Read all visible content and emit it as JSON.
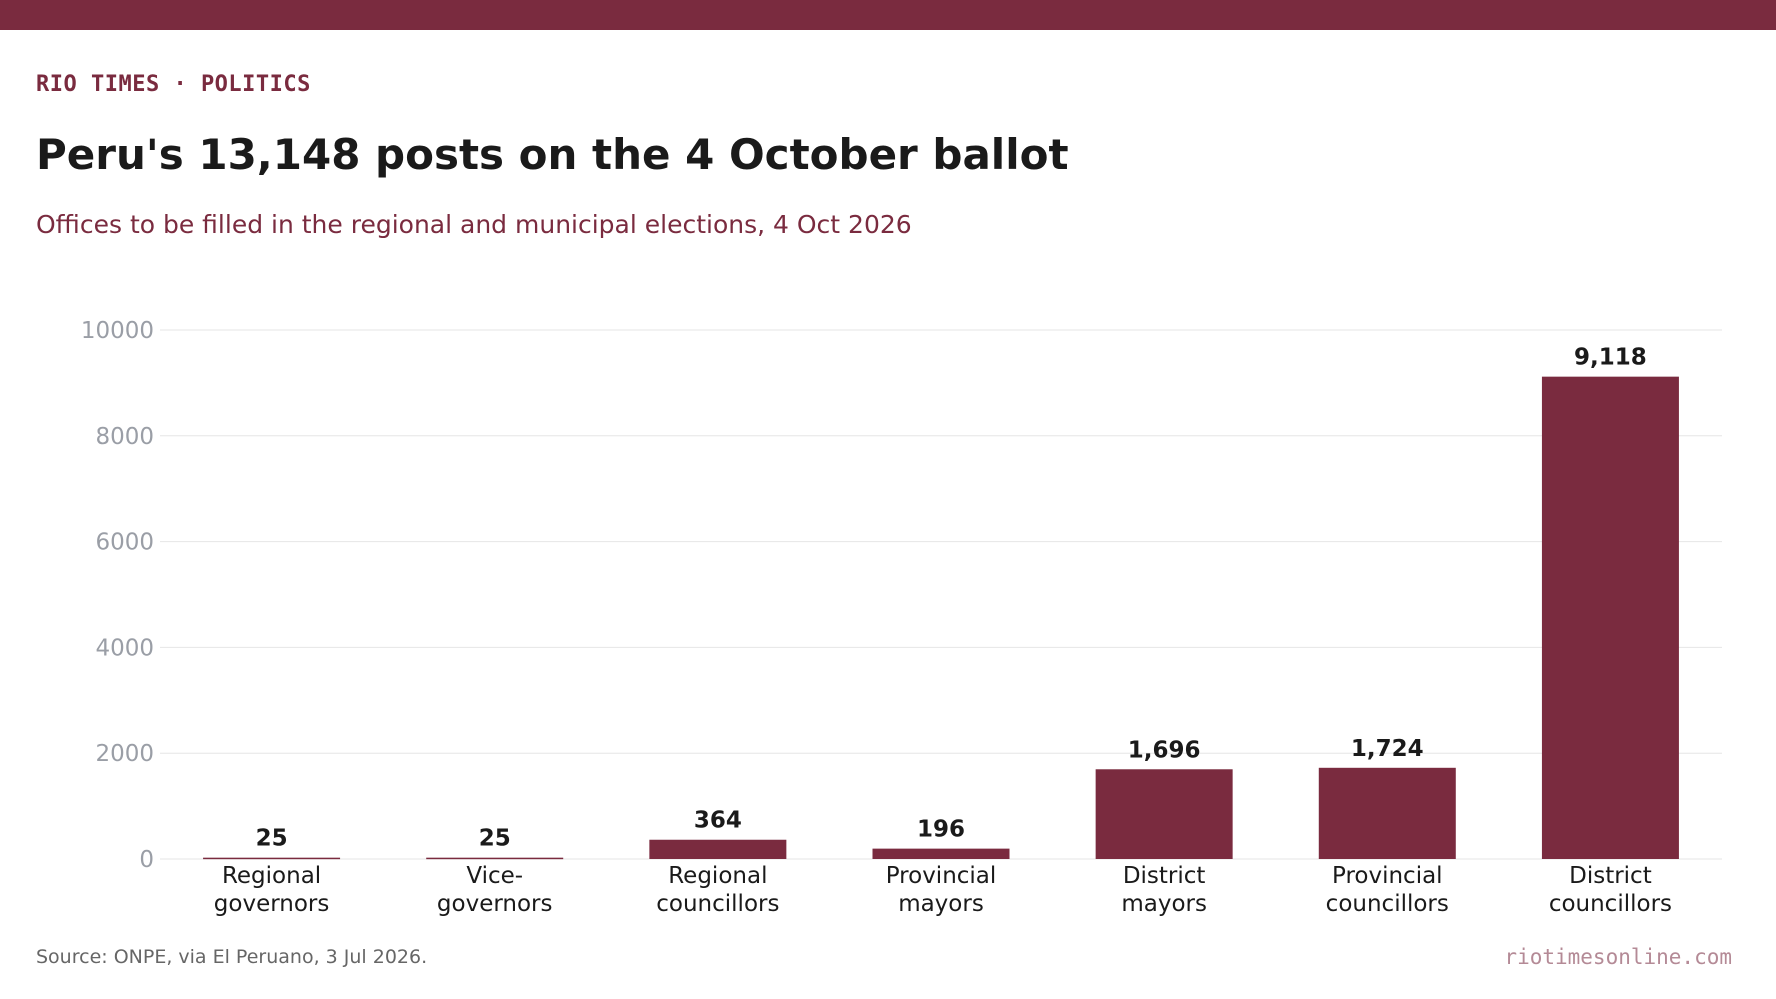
{
  "header": {
    "kicker": "RIO TIMES · POLITICS",
    "title": "Peru's 13,148 posts on the 4 October ballot",
    "subtitle": "Offices to be filled in the regional and municipal elections, 4 Oct 2026"
  },
  "footer": {
    "source": "Source: ONPE, via El Peruano, 3 Jul 2026.",
    "site": "riotimesonline.com"
  },
  "colors": {
    "accent": "#7a2b3f",
    "bar": "#7a2b3f",
    "grid": "#e6e6e6",
    "tick_text": "#9a9ea6"
  },
  "chart_data": {
    "type": "bar",
    "categories": [
      [
        "Regional",
        "governors"
      ],
      [
        "Vice-",
        "governors"
      ],
      [
        "Regional",
        "councillors"
      ],
      [
        "Provincial",
        "mayors"
      ],
      [
        "District",
        "mayors"
      ],
      [
        "Provincial",
        "councillors"
      ],
      [
        "District",
        "councillors"
      ]
    ],
    "values": [
      25,
      25,
      364,
      196,
      1696,
      1724,
      9118
    ],
    "value_labels": [
      "25",
      "25",
      "364",
      "196",
      "1,696",
      "1,724",
      "9,118"
    ],
    "yticks": [
      0,
      2000,
      4000,
      6000,
      8000,
      10000
    ],
    "ylim": [
      0,
      10000
    ],
    "grid": true,
    "legend": "none"
  }
}
